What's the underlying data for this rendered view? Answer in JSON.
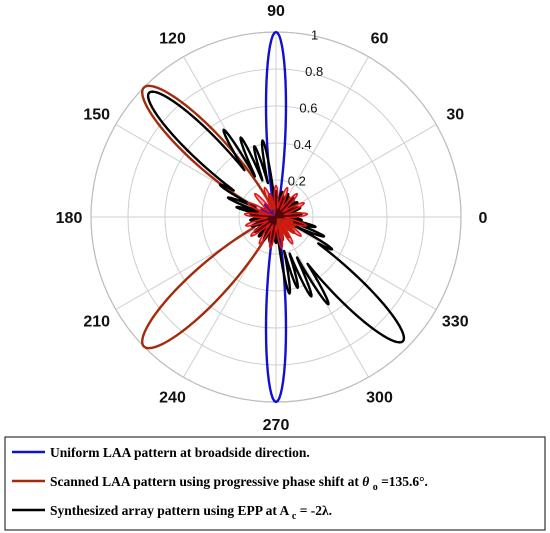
{
  "chart_data": {
    "type": "polar-line",
    "angle_unit": "degrees",
    "angle_ticks": [
      0,
      30,
      60,
      90,
      120,
      150,
      180,
      210,
      240,
      270,
      300,
      330
    ],
    "angle_tick_labels": [
      "0",
      "30",
      "60",
      "90",
      "120",
      "150",
      "180",
      "210",
      "240",
      "270",
      "300",
      "330"
    ],
    "radial_range": [
      0,
      1
    ],
    "radial_ticks": [
      0.2,
      0.4,
      0.6,
      0.8,
      1
    ],
    "radial_tick_labels": [
      "0.2",
      "0.4",
      "0.6",
      "0.8",
      "1"
    ],
    "grid": true,
    "legend_position": "bottom",
    "series": [
      {
        "name": "Uniform LAA pattern at broadside direction.",
        "color": "#1010d0",
        "main_lobes": [
          90,
          270
        ],
        "lobe_width_deg": 12,
        "peak": 1.0
      },
      {
        "name": "Scanned LAA pattern using progressive phase shift at θo=135.6°.",
        "color": "#a52a0a",
        "main_lobes": [
          135.6,
          224.4
        ],
        "lobe_width_deg": 22,
        "peak": 1.0
      },
      {
        "name": "Synthesized array pattern using EPP at Ac= -2λ.",
        "color": "#000000",
        "main_lobes": [
          135.6,
          315.6
        ],
        "lobe_width_deg": 18,
        "peak": 0.96,
        "sidelobes": [
          {
            "angle": 100,
            "r": 0.42
          },
          {
            "angle": 107,
            "r": 0.4
          },
          {
            "angle": 114,
            "r": 0.47
          },
          {
            "angle": 121,
            "r": 0.55
          },
          {
            "angle": 150,
            "r": 0.35
          },
          {
            "angle": 158,
            "r": 0.28
          },
          {
            "angle": 166,
            "r": 0.22
          },
          {
            "angle": 280,
            "r": 0.42
          },
          {
            "angle": 287,
            "r": 0.4
          },
          {
            "angle": 294,
            "r": 0.47
          },
          {
            "angle": 301,
            "r": 0.55
          },
          {
            "angle": 330,
            "r": 0.35
          },
          {
            "angle": 338,
            "r": 0.28
          },
          {
            "angle": 346,
            "r": 0.22
          }
        ]
      }
    ]
  },
  "legend": {
    "items": [
      {
        "text": "Uniform LAA pattern at broadside direction.",
        "color": "#1010d0"
      },
      {
        "text_before": "Scanned LAA pattern using progressive phase shift at",
        "symbol": "θ",
        "sub": "o",
        "text_after": "=135.6°.",
        "color": "#a52a0a"
      },
      {
        "text_before": "Synthesized array pattern using EPP at A",
        "sub": "c",
        "text_after": "= -2λ.",
        "color": "#000000"
      }
    ]
  }
}
